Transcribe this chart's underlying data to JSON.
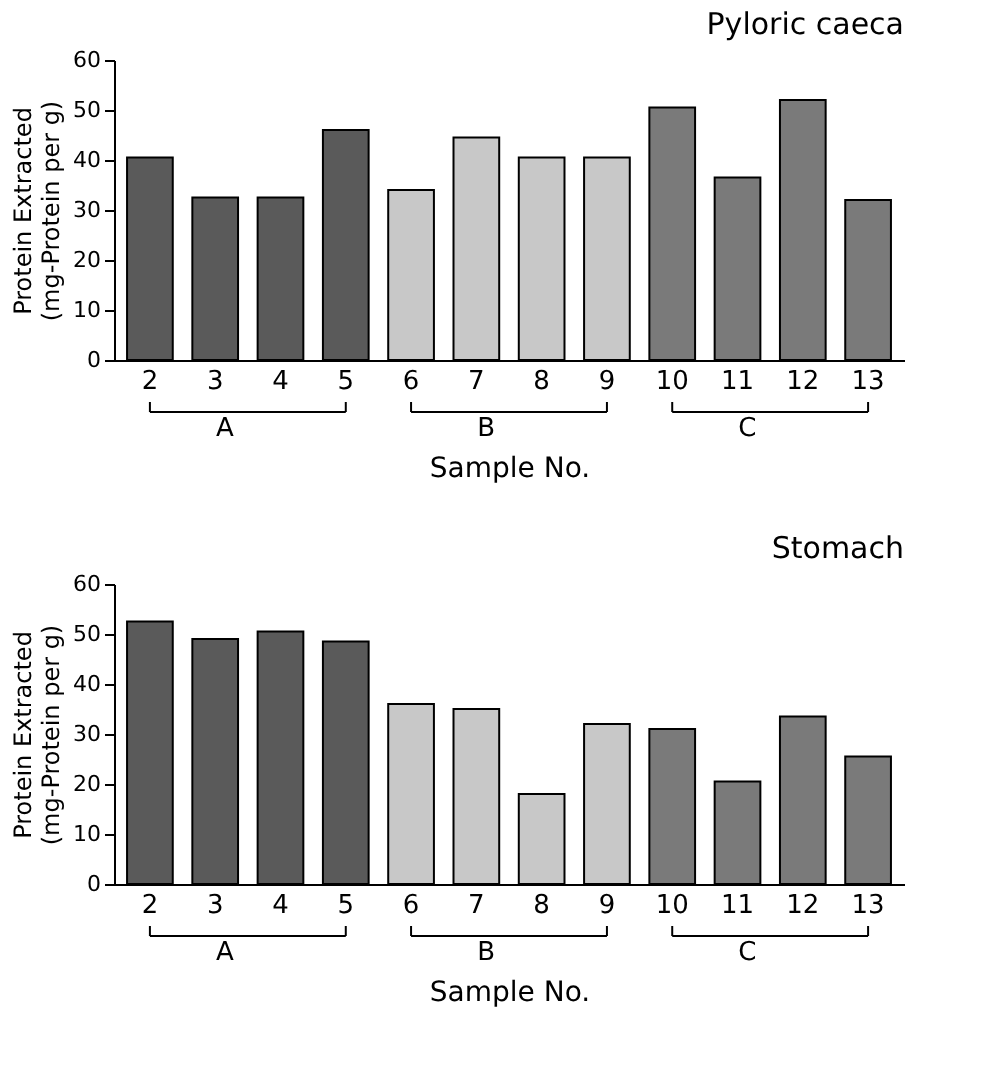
{
  "chart_data": [
    {
      "type": "bar",
      "title": "Pyloric caeca",
      "xlabel": "Sample No.",
      "ylabel": "Protein Extracted\n(mg-Protein per g)",
      "categories": [
        "2",
        "3",
        "4",
        "5",
        "6",
        "7",
        "8",
        "9",
        "10",
        "11",
        "12",
        "13"
      ],
      "ylim": [
        0,
        60
      ],
      "yticks": [
        0,
        10,
        20,
        30,
        40,
        50,
        60
      ],
      "series": [
        {
          "name": "A",
          "color": "#5a5a5a",
          "values": [
            40.5,
            32.5,
            32.5,
            46,
            null,
            null,
            null,
            null,
            null,
            null,
            null,
            null
          ]
        },
        {
          "name": "B",
          "color": "#c8c8c8",
          "values": [
            null,
            null,
            null,
            null,
            34,
            44.5,
            40.5,
            40.5,
            null,
            null,
            null,
            null
          ]
        },
        {
          "name": "C",
          "color": "#7a7a7a",
          "values": [
            null,
            null,
            null,
            null,
            null,
            null,
            null,
            null,
            50.5,
            36.5,
            52,
            32
          ]
        }
      ]
    },
    {
      "type": "bar",
      "title": "Stomach",
      "xlabel": "Sample No.",
      "ylabel": "Protein Extracted\n(mg-Protein per g)",
      "categories": [
        "2",
        "3",
        "4",
        "5",
        "6",
        "7",
        "8",
        "9",
        "10",
        "11",
        "12",
        "13"
      ],
      "ylim": [
        0,
        60
      ],
      "yticks": [
        0,
        10,
        20,
        30,
        40,
        50,
        60
      ],
      "series": [
        {
          "name": "A",
          "color": "#5a5a5a",
          "values": [
            52.5,
            49,
            50.5,
            48.5,
            null,
            null,
            null,
            null,
            null,
            null,
            null,
            null
          ]
        },
        {
          "name": "B",
          "color": "#c8c8c8",
          "values": [
            null,
            null,
            null,
            null,
            36,
            35,
            18,
            32,
            null,
            null,
            null,
            null
          ]
        },
        {
          "name": "C",
          "color": "#7a7a7a",
          "values": [
            null,
            null,
            null,
            null,
            null,
            null,
            null,
            null,
            31,
            20.5,
            33.5,
            25.5
          ]
        }
      ]
    }
  ]
}
